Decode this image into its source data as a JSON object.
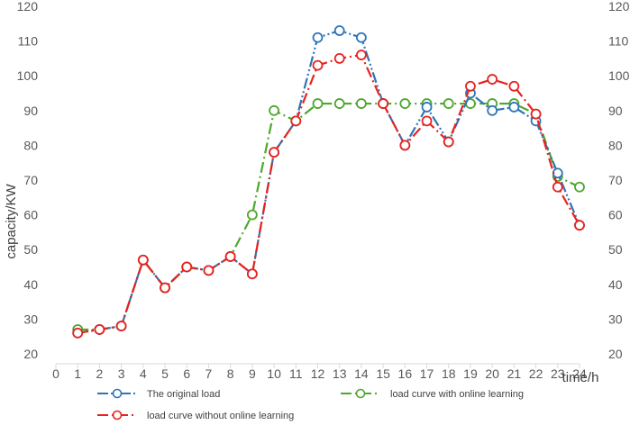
{
  "chart_data": {
    "type": "line",
    "title": "",
    "xlabel": "time/h",
    "ylabel": "capacity/KW",
    "x": [
      1,
      2,
      3,
      4,
      5,
      6,
      7,
      8,
      9,
      10,
      11,
      12,
      13,
      14,
      15,
      16,
      17,
      18,
      19,
      20,
      21,
      22,
      23,
      24
    ],
    "xlim": [
      0,
      24
    ],
    "ylim": [
      20,
      120
    ],
    "x_ticks": [
      "0",
      "1",
      "2",
      "3",
      "4",
      "5",
      "6",
      "7",
      "8",
      "9",
      "10",
      "11",
      "12",
      "13",
      "14",
      "15",
      "16",
      "17",
      "18",
      "19",
      "20",
      "21",
      "22",
      "23",
      "24"
    ],
    "y_ticks": [
      "20",
      "30",
      "40",
      "50",
      "60",
      "70",
      "80",
      "90",
      "100",
      "110",
      "120"
    ],
    "secondary_y_ticks": [
      "20",
      "30",
      "40",
      "50",
      "60",
      "70",
      "80",
      "90",
      "100",
      "110",
      "120"
    ],
    "grid": false,
    "legend_position": "bottom",
    "series": [
      {
        "name": "The original load",
        "color": "#2E75B6",
        "line_style": "dash-dot-dot",
        "marker": "open-circle",
        "values": [
          26,
          27,
          28,
          47,
          39,
          45,
          44,
          48,
          43,
          78,
          87,
          111,
          113,
          111,
          92,
          80,
          91,
          81,
          95,
          90,
          91,
          87,
          72,
          57
        ]
      },
      {
        "name": "load curve with online learning",
        "color": "#4EA72E",
        "line_style": "dash-dot",
        "marker": "open-circle",
        "values": [
          27,
          27,
          28,
          47,
          39,
          45,
          44,
          48,
          60,
          90,
          87,
          92,
          92,
          92,
          92,
          92,
          92,
          92,
          92,
          92,
          92,
          89,
          71,
          68
        ]
      },
      {
        "name": "load curve without online learning",
        "color": "#E8221F",
        "line_style": "dash-dot",
        "marker": "open-circle",
        "values": [
          26,
          27,
          28,
          47,
          39,
          45,
          44,
          48,
          43,
          78,
          87,
          103,
          105,
          106,
          92,
          80,
          87,
          81,
          97,
          99,
          97,
          89,
          68,
          57
        ]
      }
    ]
  }
}
